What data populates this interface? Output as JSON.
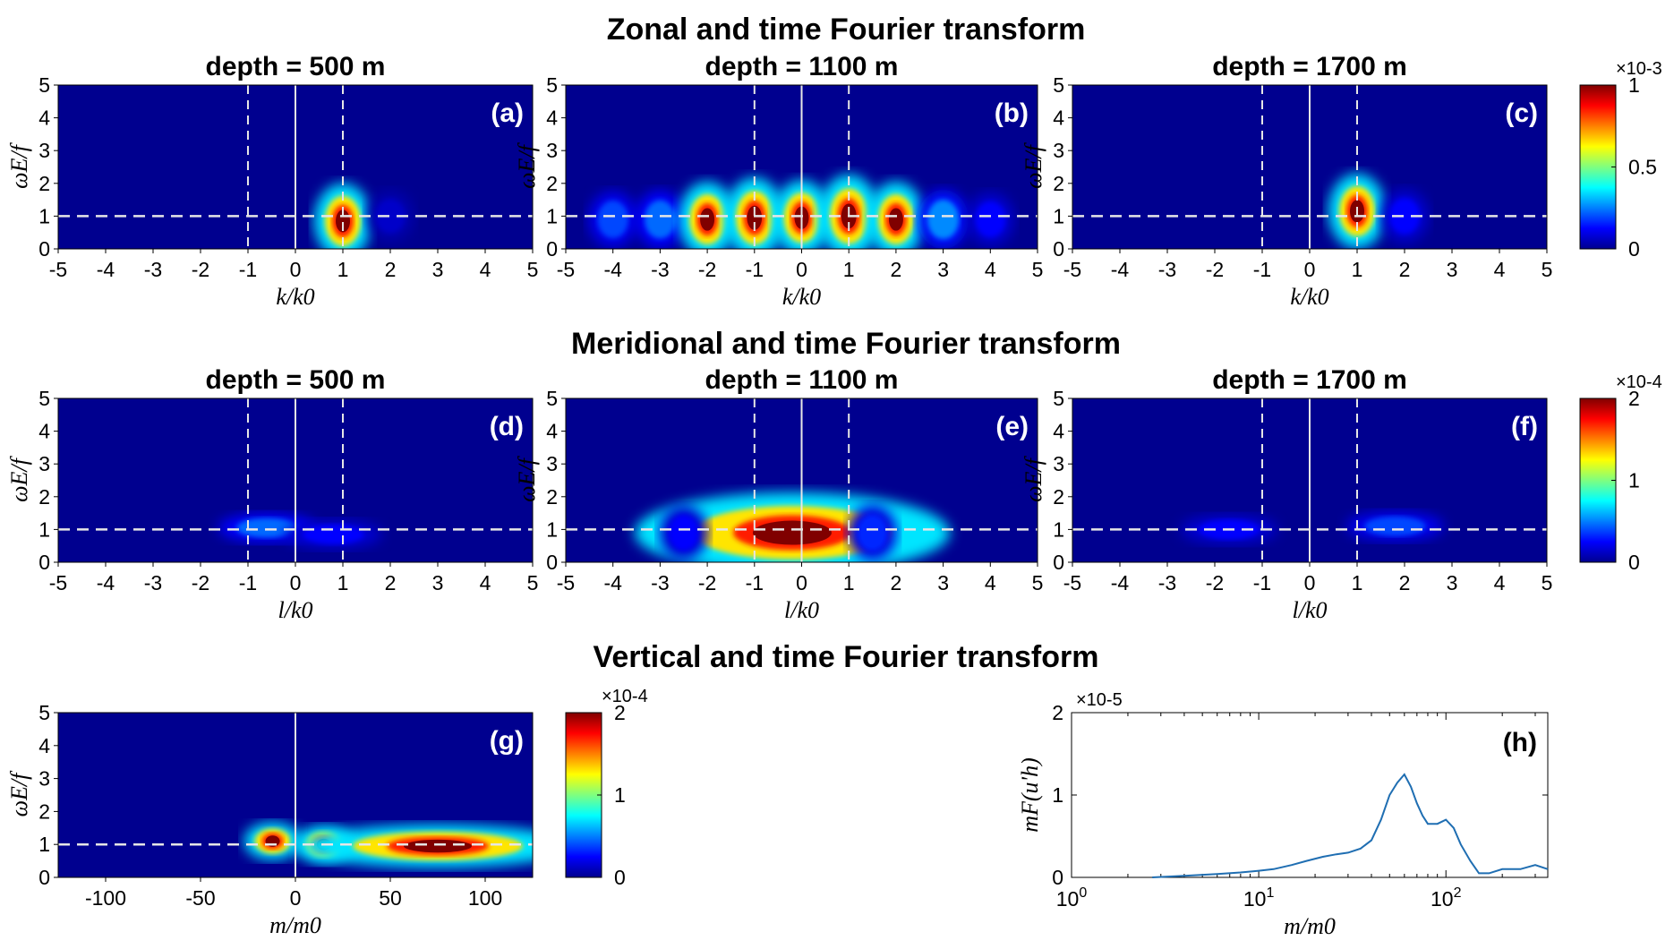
{
  "sections": {
    "zonal": "Zonal and time Fourier transform",
    "meridional": "Meridional and time Fourier transform",
    "vertical": "Vertical and time Fourier transform"
  },
  "labels": {
    "omega_y": "ωE/f",
    "k_x": "k/k0",
    "l_x": "l/k0",
    "m_x": "m/m0",
    "h_y": "mF(u'h)"
  },
  "colors": {
    "background": "#00008f",
    "line": "#1f6eb2",
    "dashed": "#e6e6e6"
  },
  "chart_data": [
    {
      "id": "a",
      "panel_label": "(a)",
      "title": "depth = 500 m",
      "type": "heatmap",
      "xlabel": "k/k0",
      "ylabel": "ωE/f",
      "xlim": [
        -5,
        5
      ],
      "ylim": [
        0,
        5
      ],
      "xticks": [
        -5,
        -4,
        -3,
        -2,
        -1,
        0,
        1,
        2,
        3,
        4,
        5
      ],
      "yticks": [
        0,
        1,
        2,
        3,
        4,
        5
      ],
      "colorbar": {
        "min": 0,
        "max": 1,
        "ticks": [
          0,
          0.5,
          1
        ],
        "exponent": "×10-3"
      },
      "peaks": [
        {
          "x": 1,
          "y": 0.85,
          "value": 1.0
        },
        {
          "x": 2,
          "y": 1.0,
          "value": 0.1
        }
      ],
      "reference_lines": {
        "vertical_dashed": [
          -1,
          1
        ],
        "vertical_solid": [
          0
        ],
        "horizontal_dashed": [
          1
        ]
      }
    },
    {
      "id": "b",
      "panel_label": "(b)",
      "title": "depth = 1100 m",
      "type": "heatmap",
      "xlabel": "k/k0",
      "ylabel": "ωE/f",
      "xlim": [
        -5,
        5
      ],
      "ylim": [
        0,
        5
      ],
      "xticks": [
        -5,
        -4,
        -3,
        -2,
        -1,
        0,
        1,
        2,
        3,
        4,
        5
      ],
      "yticks": [
        0,
        1,
        2,
        3,
        4,
        5
      ],
      "colorbar": {
        "min": 0,
        "max": 1,
        "ticks": [
          0,
          0.5,
          1
        ],
        "exponent": "×10-3"
      },
      "peaks": [
        {
          "x": -4,
          "y": 0.9,
          "value": 0.3
        },
        {
          "x": -3,
          "y": 0.9,
          "value": 0.35
        },
        {
          "x": -2,
          "y": 0.9,
          "value": 1.0
        },
        {
          "x": -1,
          "y": 0.95,
          "value": 1.2
        },
        {
          "x": 0,
          "y": 0.95,
          "value": 1.0
        },
        {
          "x": 1,
          "y": 1.0,
          "value": 1.3
        },
        {
          "x": 2,
          "y": 0.9,
          "value": 1.0
        },
        {
          "x": 3,
          "y": 0.9,
          "value": 0.4
        },
        {
          "x": 4,
          "y": 0.9,
          "value": 0.2
        }
      ],
      "reference_lines": {
        "vertical_dashed": [
          -1,
          1
        ],
        "vertical_solid": [
          0
        ],
        "horizontal_dashed": [
          1
        ]
      }
    },
    {
      "id": "c",
      "panel_label": "(c)",
      "title": "depth = 1700 m",
      "type": "heatmap",
      "xlabel": "k/k0",
      "ylabel": "ωE/f",
      "xlim": [
        -5,
        5
      ],
      "ylim": [
        0,
        5
      ],
      "xticks": [
        -5,
        -4,
        -3,
        -2,
        -1,
        0,
        1,
        2,
        3,
        4,
        5
      ],
      "yticks": [
        0,
        1,
        2,
        3,
        4,
        5
      ],
      "colorbar": {
        "min": 0,
        "max": 1,
        "ticks": [
          0,
          0.5,
          1
        ],
        "exponent": "×10-3"
      },
      "peaks": [
        {
          "x": 1,
          "y": 1.15,
          "value": 1.0
        },
        {
          "x": 2,
          "y": 1.0,
          "value": 0.2
        }
      ],
      "reference_lines": {
        "vertical_dashed": [
          -1,
          1
        ],
        "vertical_solid": [
          0
        ],
        "horizontal_dashed": [
          1
        ]
      }
    },
    {
      "id": "d",
      "panel_label": "(d)",
      "title": "depth = 500 m",
      "type": "heatmap",
      "xlabel": "l/k0",
      "ylabel": "ωE/f",
      "xlim": [
        -5,
        5
      ],
      "ylim": [
        0,
        5
      ],
      "xticks": [
        -5,
        -4,
        -3,
        -2,
        -1,
        0,
        1,
        2,
        3,
        4,
        5
      ],
      "yticks": [
        0,
        1,
        2,
        3,
        4,
        5
      ],
      "colorbar": {
        "min": 0,
        "max": 2,
        "ticks": [
          0,
          1,
          2
        ],
        "exponent": "×10-4"
      },
      "peaks": [
        {
          "x": -0.6,
          "y": 1.05,
          "value": 0.7
        },
        {
          "x": 0.8,
          "y": 0.85,
          "value": 0.4
        }
      ],
      "reference_lines": {
        "vertical_dashed": [
          -1,
          1
        ],
        "vertical_solid": [
          0
        ],
        "horizontal_dashed": [
          1
        ]
      }
    },
    {
      "id": "e",
      "panel_label": "(e)",
      "title": "depth = 1100 m",
      "type": "heatmap",
      "xlabel": "l/k0",
      "ylabel": "ωE/f",
      "xlim": [
        -5,
        5
      ],
      "ylim": [
        0,
        5
      ],
      "xticks": [
        -5,
        -4,
        -3,
        -2,
        -1,
        0,
        1,
        2,
        3,
        4,
        5
      ],
      "yticks": [
        0,
        1,
        2,
        3,
        4,
        5
      ],
      "colorbar": {
        "min": 0,
        "max": 2,
        "ticks": [
          0,
          1,
          2
        ],
        "exponent": "×10-4"
      },
      "peaks": [
        {
          "x": -0.2,
          "y": 0.9,
          "value": 2.5
        },
        {
          "x": -2.5,
          "y": 0.9,
          "value": 0.4
        },
        {
          "x": 1.5,
          "y": 0.9,
          "value": 0.5
        }
      ],
      "reference_lines": {
        "vertical_dashed": [
          -1,
          1
        ],
        "vertical_solid": [
          0
        ],
        "horizontal_dashed": [
          1
        ]
      }
    },
    {
      "id": "f",
      "panel_label": "(f)",
      "title": "depth = 1700 m",
      "type": "heatmap",
      "xlabel": "l/k0",
      "ylabel": "ωE/f",
      "xlim": [
        -5,
        5
      ],
      "ylim": [
        0,
        5
      ],
      "xticks": [
        -5,
        -4,
        -3,
        -2,
        -1,
        0,
        1,
        2,
        3,
        4,
        5
      ],
      "yticks": [
        0,
        1,
        2,
        3,
        4,
        5
      ],
      "colorbar": {
        "min": 0,
        "max": 2,
        "ticks": [
          0,
          1,
          2
        ],
        "exponent": "×10-4"
      },
      "peaks": [
        {
          "x": -1.7,
          "y": 1.0,
          "value": 0.4
        },
        {
          "x": 1.8,
          "y": 1.1,
          "value": 0.6
        }
      ],
      "reference_lines": {
        "vertical_dashed": [
          -1,
          1
        ],
        "vertical_solid": [
          0
        ],
        "horizontal_dashed": [
          1
        ]
      }
    },
    {
      "id": "g",
      "panel_label": "(g)",
      "title": "",
      "type": "heatmap",
      "xlabel": "m/m0",
      "ylabel": "ωE/f",
      "xlim": [
        -125,
        125
      ],
      "ylim": [
        0,
        5
      ],
      "xticks": [
        -100,
        -50,
        0,
        50,
        100
      ],
      "yticks": [
        0,
        1,
        2,
        3,
        4,
        5
      ],
      "colorbar": {
        "min": 0,
        "max": 2,
        "ticks": [
          0,
          1,
          2
        ],
        "exponent": "×10-4"
      },
      "peaks": [
        {
          "x": -12,
          "y": 1.1,
          "value": 2.0
        },
        {
          "x": 15,
          "y": 1.0,
          "value": 2.0
        },
        {
          "x": 75,
          "y": 0.95,
          "value": 2.2
        }
      ],
      "reference_lines": {
        "vertical_solid": [
          0
        ],
        "horizontal_dashed": [
          1
        ]
      }
    },
    {
      "id": "h",
      "panel_label": "(h)",
      "title": "",
      "type": "line",
      "xlabel": "m/m0",
      "ylabel": "mF(u'h)",
      "x_scale": "log",
      "xlim": [
        1,
        350
      ],
      "ylim": [
        0,
        2
      ],
      "exponent": "×10-5",
      "xticks": [
        "10^0",
        "10^1",
        "10^2"
      ],
      "yticks": [
        0,
        1,
        2
      ],
      "series": [
        {
          "x": [
            2.7,
            4,
            6,
            8,
            10,
            12,
            15,
            18,
            22,
            26,
            30,
            35,
            40,
            45,
            50,
            55,
            60,
            65,
            70,
            75,
            80,
            90,
            100,
            110,
            120,
            135,
            150,
            170,
            200,
            250,
            300,
            350
          ],
          "y": [
            0.0,
            0.02,
            0.04,
            0.06,
            0.08,
            0.1,
            0.15,
            0.2,
            0.25,
            0.28,
            0.3,
            0.35,
            0.45,
            0.7,
            1.0,
            1.15,
            1.25,
            1.1,
            0.9,
            0.75,
            0.65,
            0.65,
            0.7,
            0.6,
            0.4,
            0.2,
            0.05,
            0.05,
            0.1,
            0.1,
            0.15,
            0.1
          ]
        }
      ]
    }
  ]
}
